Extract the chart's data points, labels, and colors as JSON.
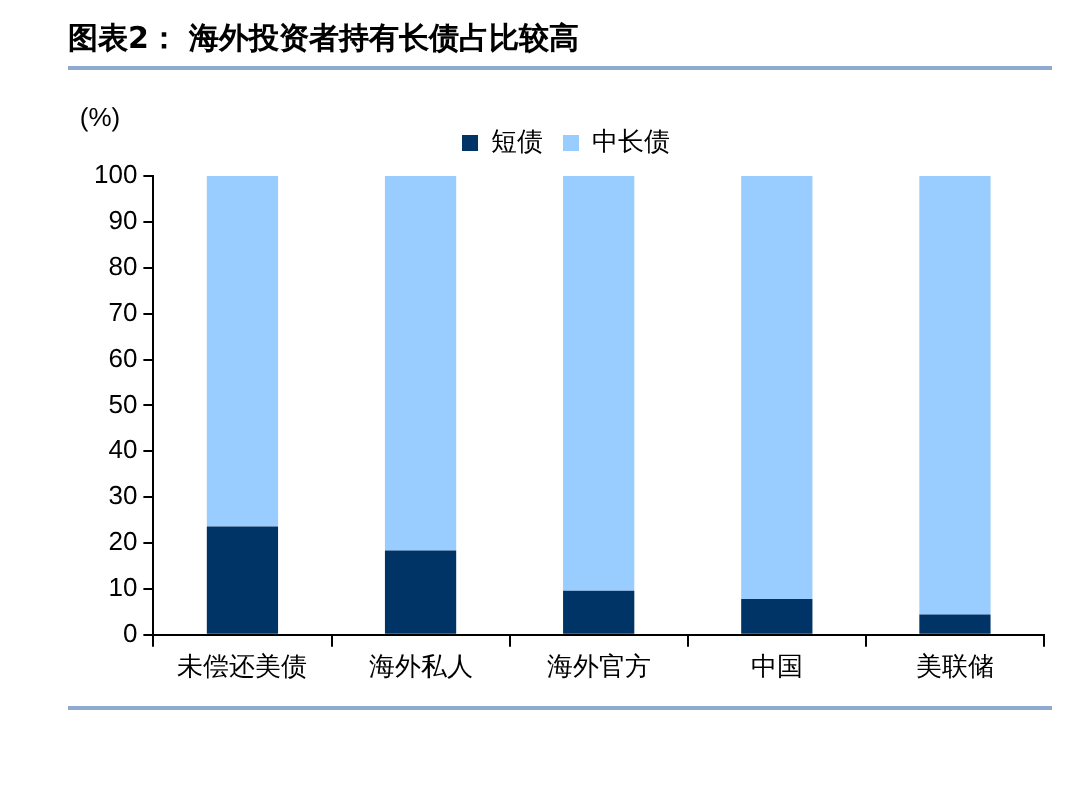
{
  "chart_data": {
    "type": "bar",
    "title": "图表2：  海外投资者持有长债占比较高",
    "ylabel": "(%)",
    "categories": [
      "未偿还美债",
      "海外私人",
      "海外官方",
      "中国",
      "美联储"
    ],
    "stacked": true,
    "series": [
      {
        "name": "短债",
        "color": "#003366",
        "values": [
          23.6,
          18.4,
          9.6,
          7.8,
          4.4
        ]
      },
      {
        "name": "中长债",
        "color": "#99ccff",
        "values": [
          76.4,
          81.6,
          90.4,
          92.2,
          95.6
        ]
      }
    ],
    "ylim": [
      0,
      100
    ],
    "yticks": [
      0,
      10,
      20,
      30,
      40,
      50,
      60,
      70,
      80,
      90,
      100
    ],
    "legend": "top"
  }
}
